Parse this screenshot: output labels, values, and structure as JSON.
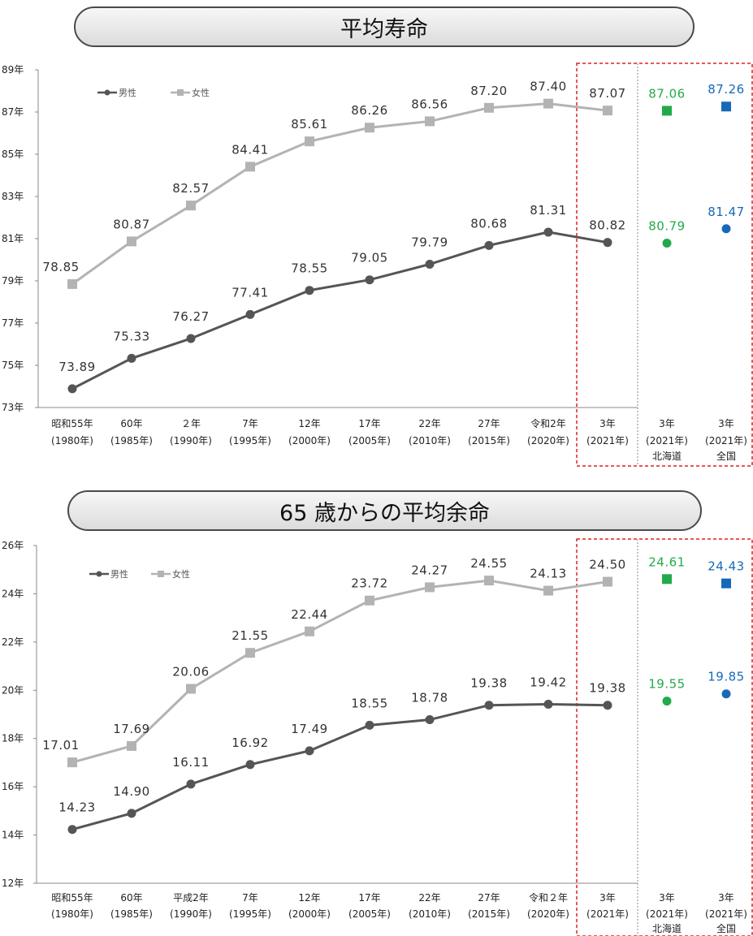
{
  "colors": {
    "male": "#555555",
    "female": "#b3b3b3",
    "hokkaido": "#22aa4a",
    "national": "#1769b8",
    "highlight_border": "#e02020",
    "divider": "#888888"
  },
  "chart_data": [
    {
      "type": "line",
      "title": "平均寿命",
      "ylim": [
        73,
        89
      ],
      "yticks": [
        73,
        75,
        77,
        79,
        81,
        83,
        85,
        87,
        89
      ],
      "y_tick_suffix": "年",
      "legend": [
        "男性",
        "女性"
      ],
      "legend_position": "top-left",
      "x_labels": [
        [
          "昭和55年",
          "(1980年)",
          ""
        ],
        [
          "60年",
          "(1985年)",
          ""
        ],
        [
          "２年",
          "(1990年)",
          ""
        ],
        [
          "7年",
          "(1995年)",
          ""
        ],
        [
          "12年",
          "(2000年)",
          ""
        ],
        [
          "17年",
          "(2005年)",
          ""
        ],
        [
          "22年",
          "(2010年)",
          ""
        ],
        [
          "27年",
          "(2015年)",
          ""
        ],
        [
          "令和2年",
          "(2020年)",
          ""
        ],
        [
          "3年",
          "(2021年)",
          ""
        ],
        [
          "3年",
          "(2021年)",
          "北海道"
        ],
        [
          "3年",
          "(2021年)",
          "全国"
        ]
      ],
      "series": [
        {
          "name": "男性",
          "values": [
            73.89,
            75.33,
            76.27,
            77.41,
            78.55,
            79.05,
            79.79,
            80.68,
            81.31,
            80.82
          ]
        },
        {
          "name": "女性",
          "values": [
            78.85,
            80.87,
            82.57,
            84.41,
            85.61,
            86.26,
            86.56,
            87.2,
            87.4,
            87.07
          ]
        }
      ],
      "labels_male": [
        "73.89",
        "75.33",
        "76.27",
        "77.41",
        "78.55",
        "79.05",
        "79.79",
        "80.68",
        "81.31",
        "80.82"
      ],
      "labels_female": [
        "78.85",
        "80.87",
        "82.57",
        "84.41",
        "85.61",
        "86.26",
        "86.56",
        "87.20",
        "87.40",
        "87.07"
      ],
      "points": [
        {
          "region": "北海道",
          "male": 80.79,
          "male_label": "80.79",
          "female": 87.06,
          "female_label": "87.06"
        },
        {
          "region": "全国",
          "male": 81.47,
          "male_label": "81.47",
          "female": 87.26,
          "female_label": "87.26"
        }
      ]
    },
    {
      "type": "line",
      "title": "65 歳からの平均余命",
      "ylim": [
        12,
        26
      ],
      "yticks": [
        12,
        14,
        16,
        18,
        20,
        22,
        24,
        26
      ],
      "y_tick_suffix": "年",
      "legend": [
        "男性",
        "女性"
      ],
      "legend_position": "top-left",
      "x_labels": [
        [
          "昭和55年",
          "(1980年)",
          ""
        ],
        [
          "60年",
          "(1985年)",
          ""
        ],
        [
          "平成2年",
          "(1990年)",
          ""
        ],
        [
          "7年",
          "(1995年)",
          ""
        ],
        [
          "12年",
          "(2000年)",
          ""
        ],
        [
          "17年",
          "(2005年)",
          ""
        ],
        [
          "22年",
          "(2010年)",
          ""
        ],
        [
          "27年",
          "(2015年)",
          ""
        ],
        [
          "令和２年",
          "(2020年)",
          ""
        ],
        [
          "3年",
          "(2021年)",
          ""
        ],
        [
          "3年",
          "(2021年)",
          "北海道"
        ],
        [
          "3年",
          "(2021年)",
          "全国"
        ]
      ],
      "series": [
        {
          "name": "男性",
          "values": [
            14.23,
            14.9,
            16.11,
            16.92,
            17.49,
            18.55,
            18.78,
            19.38,
            19.42,
            19.38
          ]
        },
        {
          "name": "女性",
          "values": [
            17.01,
            17.69,
            20.06,
            21.55,
            22.44,
            23.72,
            24.27,
            24.55,
            24.13,
            24.5
          ]
        }
      ],
      "labels_male": [
        "14.23",
        "14.90",
        "16.11",
        "16.92",
        "17.49",
        "18.55",
        "18.78",
        "19.38",
        "19.42",
        "19.38"
      ],
      "labels_female": [
        "17.01",
        "17.69",
        "20.06",
        "21.55",
        "22.44",
        "23.72",
        "24.27",
        "24.55",
        "24.13",
        "24.50"
      ],
      "points": [
        {
          "region": "北海道",
          "male": 19.55,
          "male_label": "19.55",
          "female": 24.61,
          "female_label": "24.61"
        },
        {
          "region": "全国",
          "male": 19.85,
          "male_label": "19.85",
          "female": 24.43,
          "female_label": "24.43"
        }
      ]
    }
  ]
}
